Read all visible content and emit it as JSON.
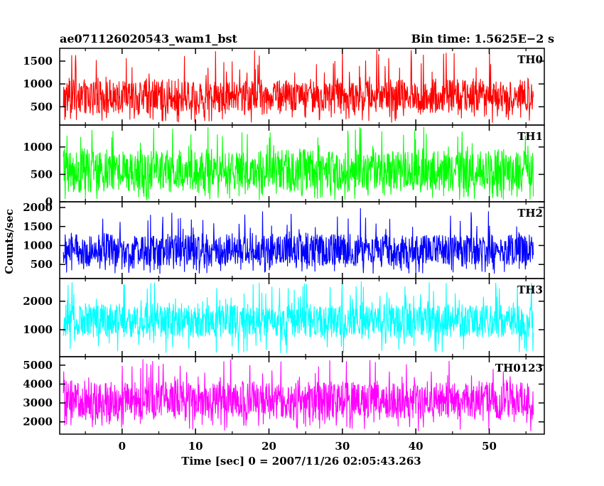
{
  "chart_data": {
    "type": "line",
    "title": "ae071126020543_wam1_bst",
    "subtitle": "Bin time: 1.5625E−2 s",
    "xlabel": "Time [sec] 0 = 2007/11/26 02:05:43.263",
    "ylabel": "Counts/sec",
    "xlim": [
      -8.5,
      57.5
    ],
    "x_data_range": [
      -8,
      56
    ],
    "x_ticks": [
      0,
      10,
      20,
      30,
      40,
      50
    ],
    "x_tick_labels": [
      "0",
      "10",
      "20",
      "30",
      "40",
      "50"
    ],
    "grid": false,
    "panels": [
      {
        "name": "TH0",
        "color": "#ff0000",
        "ylim": [
          100,
          1780
        ],
        "yticks": [
          500,
          1000,
          1500
        ],
        "ytick_labels": [
          "500",
          "1000",
          "1500"
        ],
        "typical_low": 300,
        "typical_high": 1150,
        "peak": 1760,
        "floor": 150
      },
      {
        "name": "TH1",
        "color": "#00ff00",
        "ylim": [
          0,
          1400
        ],
        "yticks": [
          0,
          500,
          1000
        ],
        "ytick_labels": [
          "0",
          "500",
          "1000"
        ],
        "typical_low": 120,
        "typical_high": 1000,
        "peak": 1380,
        "floor": 20
      },
      {
        "name": "TH2",
        "color": "#0000ff",
        "ylim": [
          130,
          2150
        ],
        "yticks": [
          500,
          1000,
          1500,
          2000
        ],
        "ytick_labels": [
          "500",
          "1000",
          "1500",
          "2000"
        ],
        "typical_low": 400,
        "typical_high": 1350,
        "peak": 2020,
        "floor": 250
      },
      {
        "name": "TH3",
        "color": "#00ffff",
        "ylim": [
          50,
          2800
        ],
        "yticks": [
          1000,
          2000
        ],
        "ytick_labels": [
          "1000",
          "2000"
        ],
        "typical_low": 650,
        "typical_high": 2000,
        "peak": 2700,
        "floor": 150
      },
      {
        "name": "TH0123",
        "color": "#ff00ff",
        "ylim": [
          1350,
          5450
        ],
        "yticks": [
          2000,
          3000,
          4000,
          5000
        ],
        "ytick_labels": [
          "2000",
          "3000",
          "4000",
          "5000"
        ],
        "typical_low": 2000,
        "typical_high": 4300,
        "peak": 5350,
        "floor": 1500
      }
    ]
  }
}
